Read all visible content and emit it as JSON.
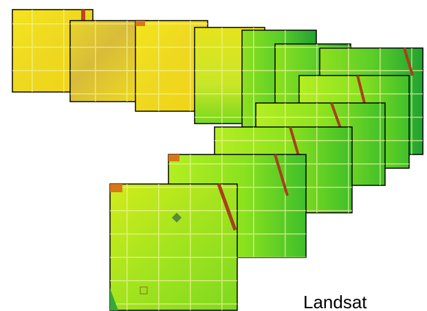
{
  "label": "Landsat"
}
